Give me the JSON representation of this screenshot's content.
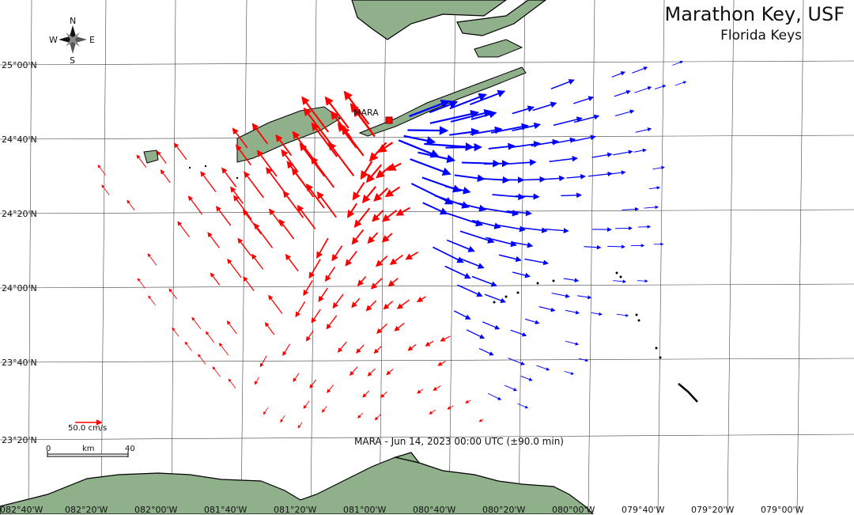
{
  "title": "Marathon Key, USF",
  "subtitle": "Florida Keys",
  "footer": "MARA - Jun 14, 2023 00:00 UTC (±90.0 min)",
  "station": {
    "label": "MARA"
  },
  "compass": {
    "n": "N",
    "s": "S",
    "e": "E",
    "w": "W"
  },
  "latitude_labels": [
    "25°00'N",
    "24°40'N",
    "24°20'N",
    "24°00'N",
    "23°40'N",
    "23°20'N"
  ],
  "longitude_labels": [
    "082°40'W",
    "082°20'W",
    "082°00'W",
    "081°40'W",
    "081°20'W",
    "081°00'W",
    "080°40'W",
    "080°20'W",
    "080°00'W",
    "079°40'W",
    "079°20'W",
    "079°00'W"
  ],
  "scale_bar": {
    "min": "0",
    "unit": "km",
    "max": "40"
  },
  "reference_vector": {
    "label": "50.0 cm/s"
  },
  "colors": {
    "toward": "#ff0000",
    "away": "#0000ff",
    "land": "#8fb08a",
    "grid": "#444444"
  }
}
